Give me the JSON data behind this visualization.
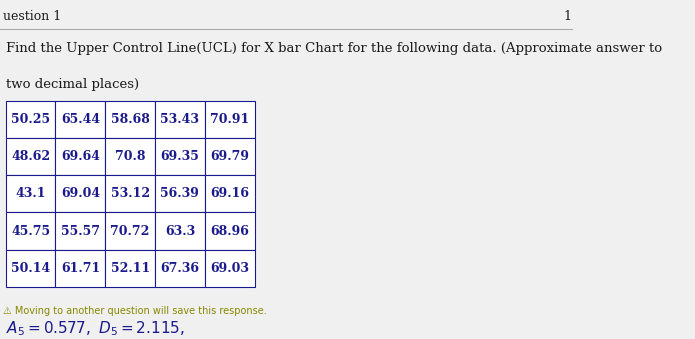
{
  "question_label": "uestion 1",
  "page_number": "1",
  "question_text_line1": "Find the Upper Control Line(UCL) for X bar Chart for the following data. (Approximate answer to",
  "question_text_line2": "two decimal places)",
  "table_data": [
    [
      "50.25",
      "65.44",
      "58.68",
      "53.43",
      "70.91"
    ],
    [
      "48.62",
      "69.64",
      "70.8",
      "69.35",
      "69.79"
    ],
    [
      "43.1",
      "69.04",
      "53.12",
      "56.39",
      "69.16"
    ],
    [
      "45.75",
      "55.57",
      "70.72",
      "63.3",
      "68.96"
    ],
    [
      "50.14",
      "61.71",
      "52.11",
      "67.36",
      "69.03"
    ]
  ],
  "footer_text": "⚠ Moving to another question will save this response.",
  "bg_color": "#f0f0f0",
  "table_text_color": "#1a1a8c",
  "body_text_color": "#1a1a1a",
  "header_text_color": "#1a1a1a",
  "table_border_color": "#1a1a8c",
  "table_bg": "#ffffff",
  "line_color": "#aaaaaa"
}
